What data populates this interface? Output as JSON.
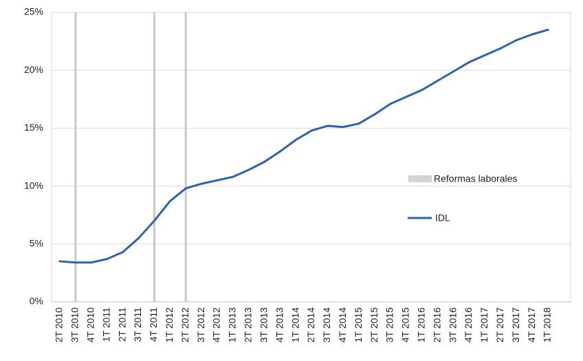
{
  "chart_data": {
    "type": "line",
    "categories": [
      "2T 2010",
      "3T 2010",
      "4T 2010",
      "1T 2011",
      "2T 2011",
      "3T 2011",
      "4T 2011",
      "1T 2012",
      "2T 2012",
      "3T 2012",
      "4T 2012",
      "1T 2013",
      "2T 2013",
      "3T 2013",
      "4T 2013",
      "1T 2014",
      "2T 2014",
      "3T 2014",
      "4T 2014",
      "1T 2015",
      "2T 2015",
      "3T 2015",
      "4T 2015",
      "1T 2016",
      "2T 2016",
      "3T 2016",
      "4T 2016",
      "1T 2017",
      "2T 2017",
      "3T 2017",
      "4T 2017",
      "1T 2018"
    ],
    "series": [
      {
        "name": "IDL",
        "color": "#2E62AE",
        "values": [
          3.5,
          3.4,
          3.4,
          3.7,
          4.3,
          5.5,
          7.0,
          8.7,
          9.8,
          10.2,
          10.5,
          10.8,
          11.4,
          12.1,
          13.0,
          14.0,
          14.8,
          15.2,
          15.1,
          15.4,
          16.2,
          17.1,
          17.7,
          18.3,
          19.1,
          19.9,
          20.7,
          21.3,
          21.9,
          22.6,
          23.1,
          23.5
        ]
      }
    ],
    "reform_markers": {
      "name": "Reformas laborales",
      "color": "#C8C8C8",
      "categories": [
        "3T 2010",
        "4T 2011",
        "2T 2012"
      ]
    },
    "ylim": [
      0,
      25
    ],
    "yticks": [
      0,
      5,
      10,
      15,
      20,
      25
    ],
    "ytick_labels": [
      "0%",
      "5%",
      "10%",
      "15%",
      "20%",
      "25%"
    ],
    "grid": true,
    "legend_placement": "right",
    "title": "",
    "xlabel": "",
    "ylabel": ""
  },
  "legend": {
    "reformas_label": "Reformas laborales",
    "idl_label": "IDL"
  }
}
